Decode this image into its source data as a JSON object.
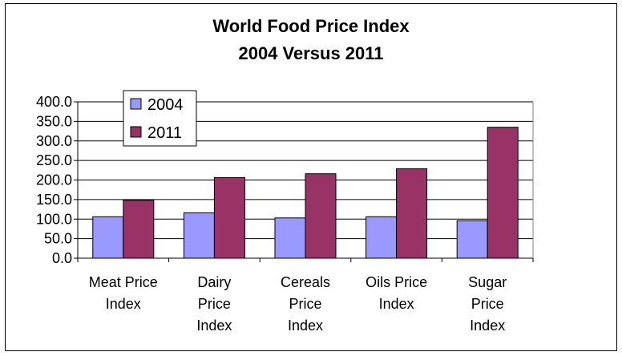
{
  "chart_data": {
    "type": "bar",
    "title": [
      "World Food Price Index",
      "2004 Versus 2011"
    ],
    "categories": [
      [
        "Meat Price",
        "Index"
      ],
      [
        "Dairy",
        "Price",
        "Index"
      ],
      [
        "Cereals",
        "Price",
        "Index"
      ],
      [
        "Oils Price",
        "Index"
      ],
      [
        "Sugar",
        "Price",
        "Index"
      ]
    ],
    "series": [
      {
        "name": "2004",
        "color": "#9999ff",
        "values": [
          106,
          116,
          103,
          106,
          96
        ]
      },
      {
        "name": "2011",
        "color": "#993366",
        "values": [
          148,
          206,
          216,
          229,
          335
        ]
      }
    ],
    "y_ticks": [
      "0.0",
      "50.0",
      "100.0",
      "150.0",
      "200.0",
      "250.0",
      "300.0",
      "350.0",
      "400.0"
    ],
    "ylim": [
      0,
      400
    ],
    "grid": true,
    "legend_position": "top-left"
  }
}
